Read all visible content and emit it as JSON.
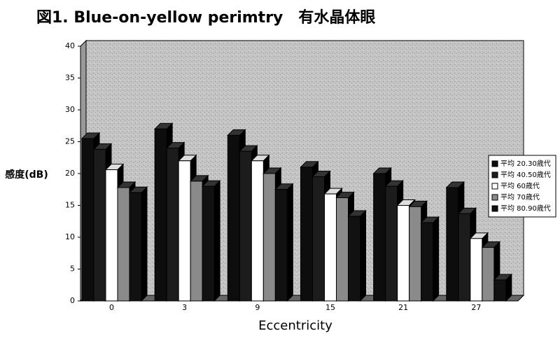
{
  "chart_data": {
    "type": "bar",
    "title": "図1. Blue-on-yellow perimtry　有水晶体眼",
    "x_label": "Eccentricity",
    "y_label": "感度(dB)",
    "categories": [
      "0",
      "3",
      "9",
      "15",
      "21",
      "27"
    ],
    "series": [
      {
        "name": "平均 20.30歳代",
        "color": "#0d0d0d",
        "values": [
          25.5,
          27,
          26,
          21,
          20,
          17.8
        ]
      },
      {
        "name": "平均 40.50歳代",
        "color": "#1c1c1c",
        "values": [
          23.8,
          24,
          23.5,
          19.5,
          18,
          13.7
        ]
      },
      {
        "name": "平均 60歳代",
        "color": "#ffffff",
        "values": [
          20.6,
          22,
          22,
          16.8,
          15,
          9.8
        ]
      },
      {
        "name": "平均 70歳代",
        "color": "#8a8a8a",
        "values": [
          17.8,
          18.8,
          20,
          16.2,
          14.8,
          8.4
        ]
      },
      {
        "name": "平均 80.90歳代",
        "color": "#111111",
        "values": [
          17,
          18,
          17.5,
          13.3,
          12.3,
          3.3
        ]
      }
    ],
    "ylim": [
      0,
      40
    ],
    "yticks": [
      0,
      5,
      10,
      15,
      20,
      25,
      30,
      35,
      40
    ],
    "legend": "right",
    "grid": false
  }
}
